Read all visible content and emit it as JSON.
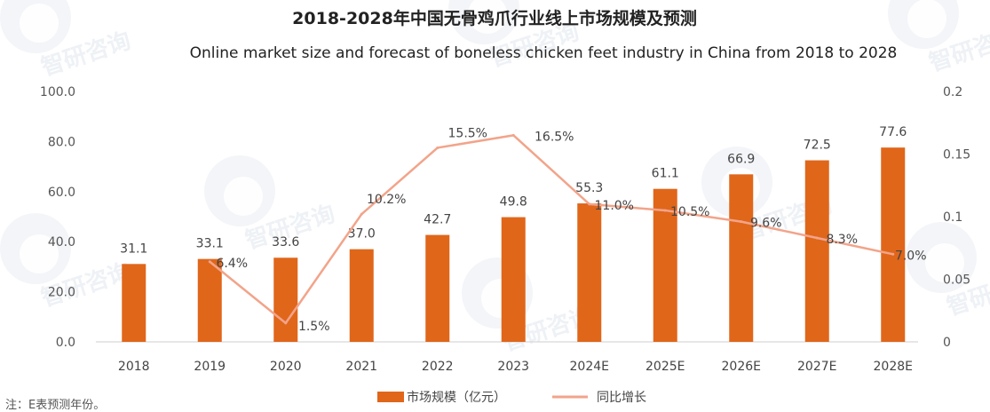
{
  "chart_data": {
    "type": "bar",
    "title": "2018-2028年中国无骨鸡爪行业线上市场规模及预测",
    "subtitle": "Online market size and forecast of boneless chicken feet industry in China from 2018 to 2028",
    "categories": [
      "2018",
      "2019",
      "2020",
      "2021",
      "2022",
      "2023",
      "2024E",
      "2025E",
      "2026E",
      "2027E",
      "2028E"
    ],
    "series": [
      {
        "name": "市场规模（亿元）",
        "type": "bar",
        "axis": "left",
        "color": "#e0661a",
        "values": [
          31.1,
          33.1,
          33.6,
          37.0,
          42.7,
          49.8,
          55.3,
          61.1,
          66.9,
          72.5,
          77.6
        ],
        "labels": [
          "31.1",
          "33.1",
          "33.6",
          "37.0",
          "42.7",
          "49.8",
          "55.3",
          "61.1",
          "66.9",
          "72.5",
          "77.6"
        ]
      },
      {
        "name": "同比增长",
        "type": "line",
        "axis": "right",
        "color": "#f2a48a",
        "values": [
          null,
          0.064,
          0.015,
          0.102,
          0.155,
          0.165,
          0.11,
          0.105,
          0.096,
          0.083,
          0.07
        ],
        "labels": [
          "",
          "6.4%",
          "1.5%",
          "10.2%",
          "15.5%",
          "16.5%",
          "11.0%",
          "10.5%",
          "9.6%",
          "8.3%",
          "7.0%"
        ]
      }
    ],
    "y_left": {
      "min": 0,
      "max": 100,
      "ticks": [
        "0.0",
        "20.0",
        "40.0",
        "60.0",
        "80.0",
        "100.0"
      ]
    },
    "y_right": {
      "min": 0,
      "max": 0.2,
      "ticks": [
        "0",
        "0.05",
        "0.1",
        "0.15",
        "0.2"
      ]
    },
    "legend_position": "bottom-center",
    "note": "注：E表预测年份。"
  },
  "watermark_text": "智研咨询"
}
